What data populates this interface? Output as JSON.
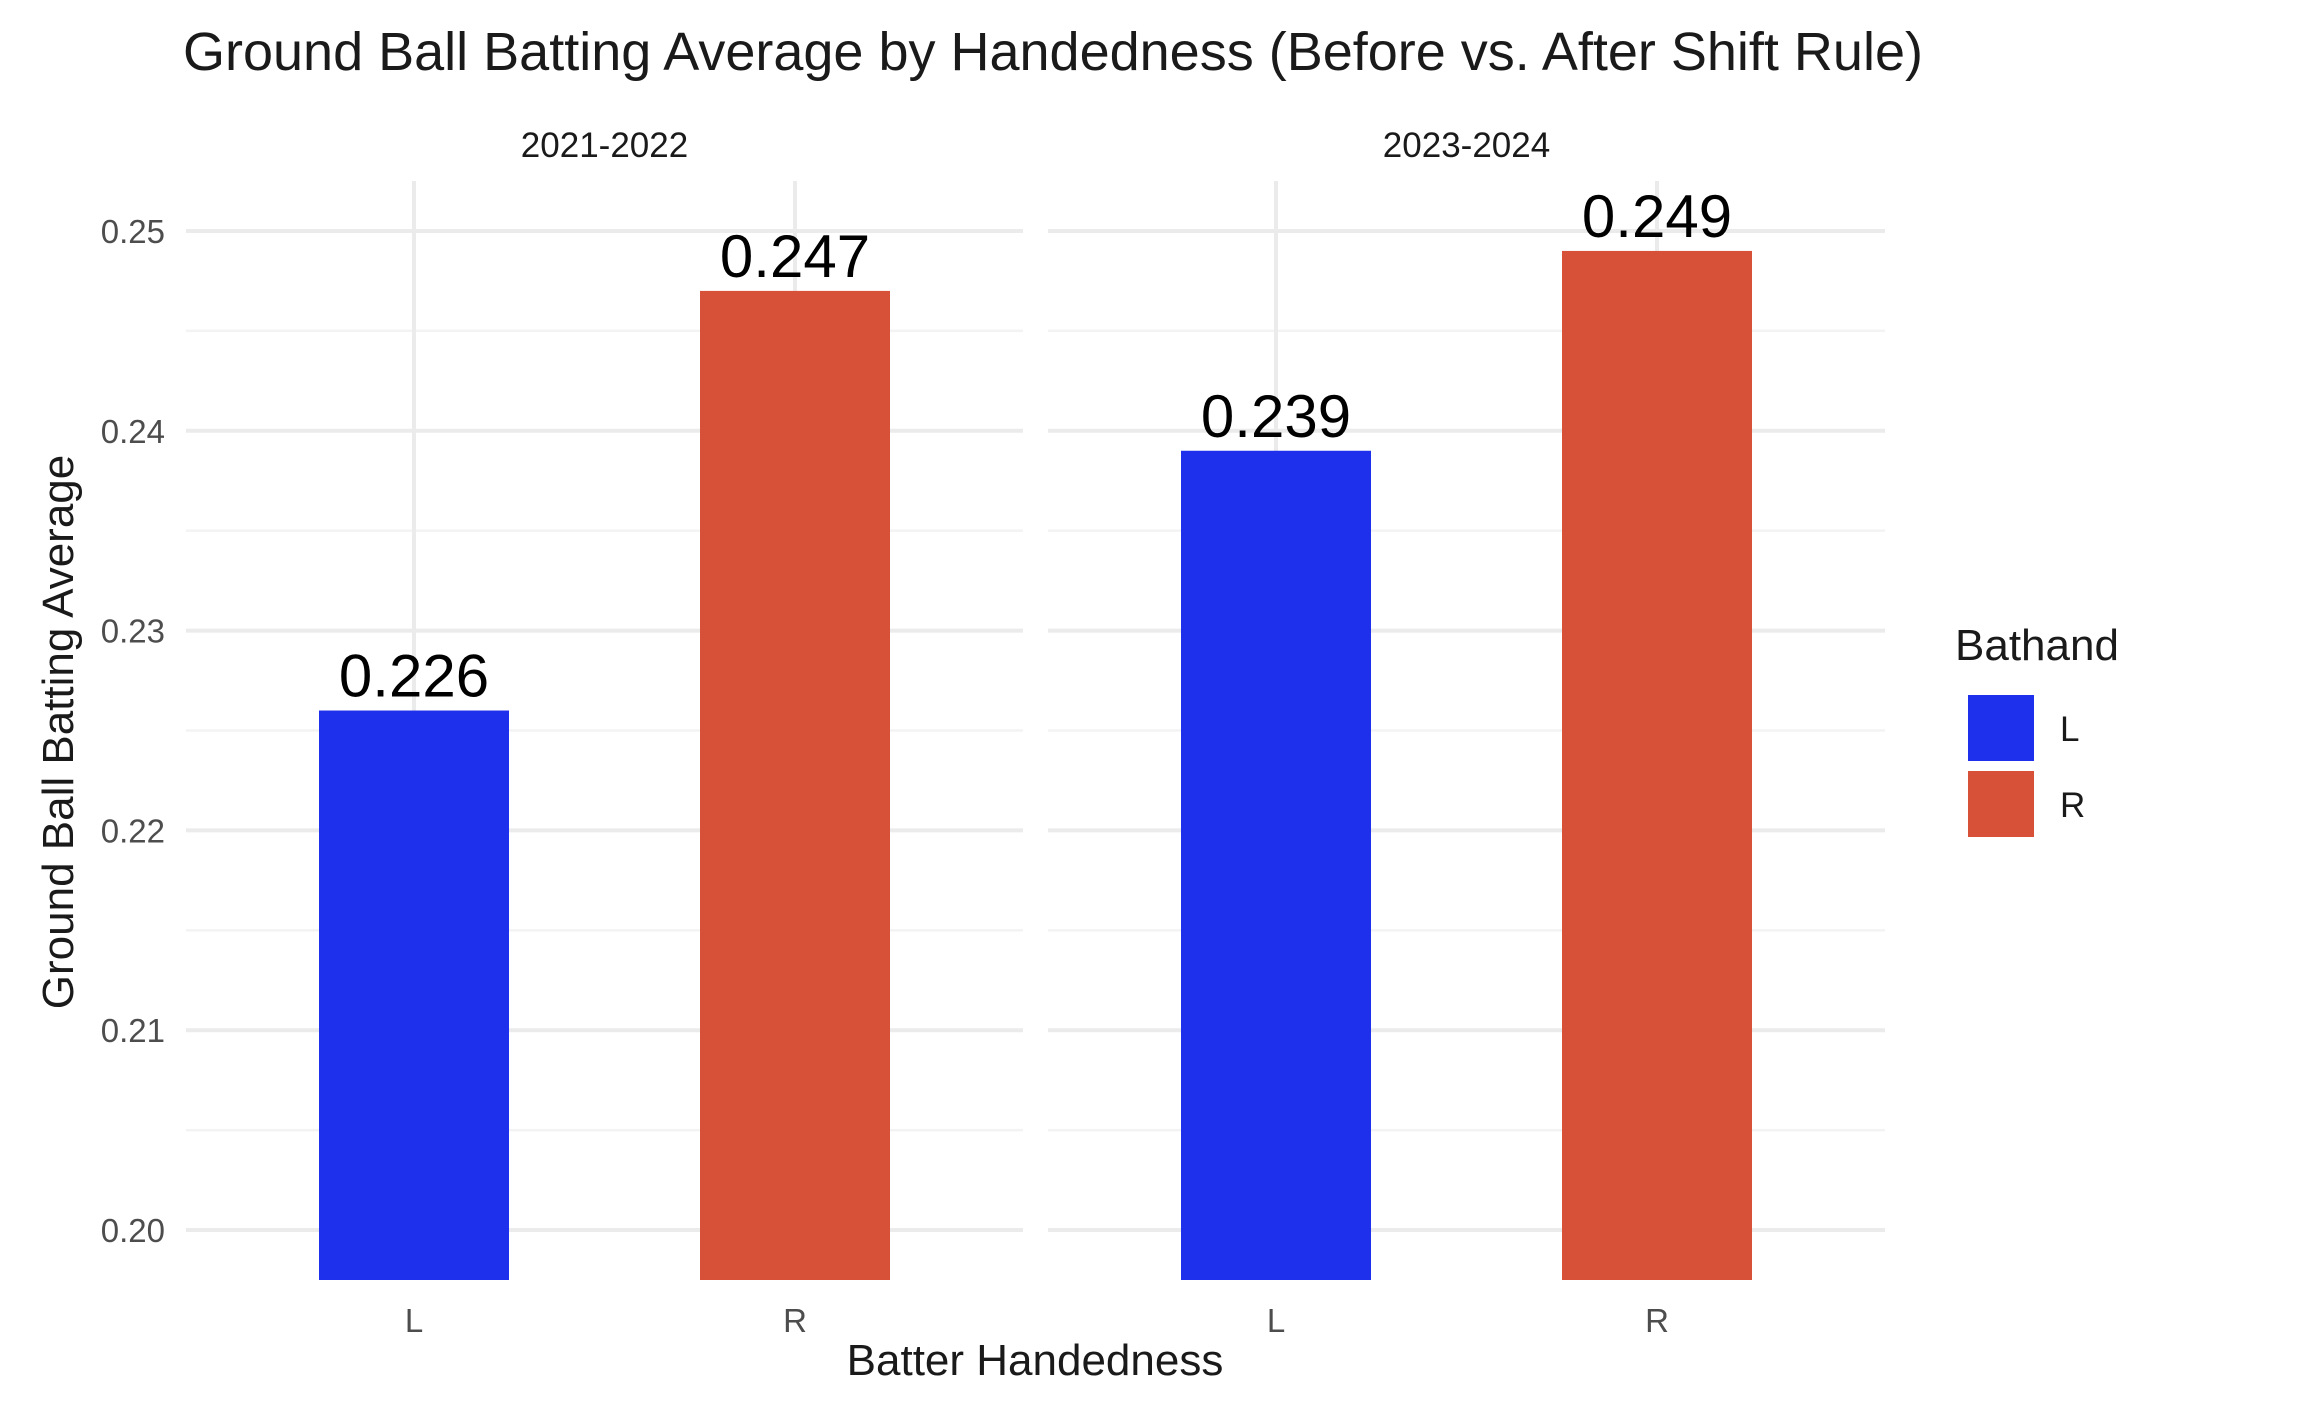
{
  "chart_data": {
    "type": "bar",
    "title": "Ground Ball Batting Average by Handedness (Before vs. After Shift Rule)",
    "xlabel": "Batter Handedness",
    "ylabel": "Ground Ball Batting Average",
    "ylim": [
      0.1975,
      0.2525
    ],
    "yticks": [
      "0.20",
      "0.21",
      "0.22",
      "0.23",
      "0.24",
      "0.25"
    ],
    "ytick_values": [
      0.2,
      0.21,
      0.22,
      0.23,
      0.24,
      0.25
    ],
    "categories": [
      "L",
      "R"
    ],
    "grid": true,
    "legend": {
      "title": "Bathand",
      "placement": "right",
      "entries": [
        {
          "label": "L",
          "color": "#1f30ec"
        },
        {
          "label": "R",
          "color": "#d75038"
        }
      ]
    },
    "panels": [
      {
        "label": "2021-2022",
        "values": [
          0.226,
          0.247
        ],
        "data_labels": [
          "0.226",
          "0.247"
        ]
      },
      {
        "label": "2023-2024",
        "values": [
          0.239,
          0.249
        ],
        "data_labels": [
          "0.239",
          "0.249"
        ]
      }
    ]
  }
}
